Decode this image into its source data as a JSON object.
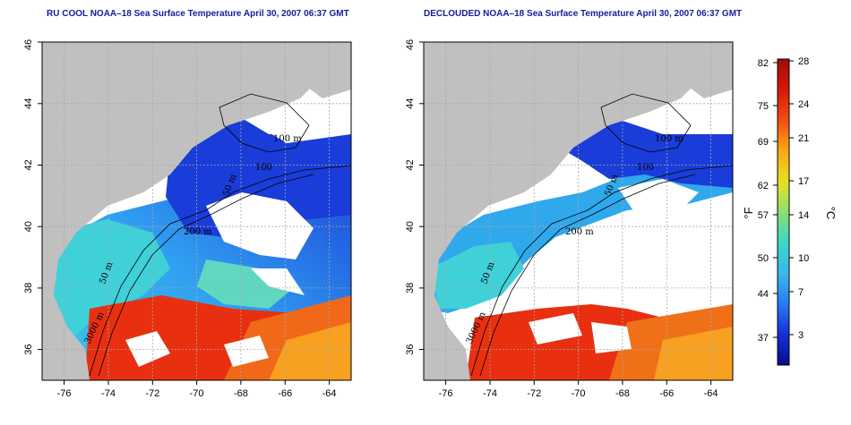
{
  "panels": [
    {
      "title": "RU COOL NOAA–18 Sea Surface Temperature April 30, 2007 06:37 GMT"
    },
    {
      "title": "DECLOUDED NOAA–18 Sea Surface Temperature April 30, 2007 06:37 GMT"
    }
  ],
  "axes": {
    "lon_ticks": [
      "-76",
      "-74",
      "-72",
      "-70",
      "-68",
      "-66",
      "-64"
    ],
    "lat_ticks": [
      "36",
      "38",
      "40",
      "42",
      "44",
      "46"
    ],
    "lon_range": [
      -77,
      -63
    ],
    "lat_range": [
      35,
      46
    ]
  },
  "contour_labels": [
    "100 m",
    "100",
    "50 m",
    "200 m",
    "50 m",
    "3000 m"
  ],
  "colorbar": {
    "f_label": "°F",
    "c_label": "°C",
    "f_ticks": [
      "82",
      "75",
      "69",
      "62",
      "57",
      "50",
      "44",
      "37"
    ],
    "c_ticks": [
      "28",
      "24",
      "21",
      "17",
      "14",
      "10",
      "7",
      "3"
    ],
    "colors": [
      "#0a0a8c",
      "#1530d8",
      "#2a7af0",
      "#3ab8ec",
      "#3cd8c8",
      "#8ce070",
      "#e8e020",
      "#f8a818",
      "#f05010",
      "#d81808",
      "#a00c0c"
    ]
  },
  "colors": {
    "land": "#c0c0c0",
    "title": "#1a1a9c",
    "grid": "#a8a8a8"
  }
}
